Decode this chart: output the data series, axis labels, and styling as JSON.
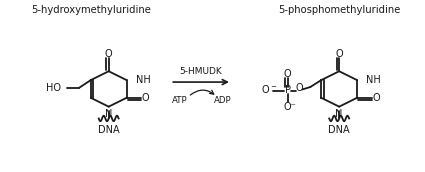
{
  "title_left": "5-hydroxymethyluridine",
  "title_right": "5-phosphomethyluridine",
  "enzyme": "5-HMUDK",
  "atp": "ATP",
  "adp": "ADP",
  "dna": "DNA",
  "bg_color": "#ffffff",
  "line_color": "#1a1a1a",
  "lw": 1.3,
  "font_size": 7.0,
  "label_font": 7.0,
  "title_font": 7.2
}
